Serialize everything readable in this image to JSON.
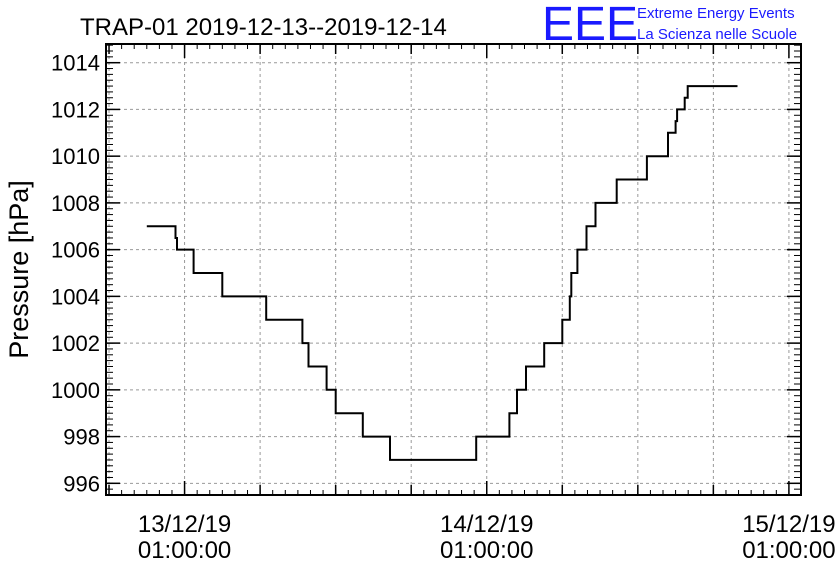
{
  "chart_data": {
    "type": "line",
    "step": true,
    "title": "TRAP-01 2019-12-13--2019-12-14",
    "ylabel": "Pressure [hPa]",
    "xlabel": "",
    "ylim": [
      995.5,
      1014.8
    ],
    "yticks": [
      996,
      998,
      1000,
      1002,
      1004,
      1006,
      1008,
      1010,
      1012,
      1014
    ],
    "ytick_labels": [
      "996",
      "998",
      "1000",
      "1002",
      "1004",
      "1006",
      "1008",
      "1010",
      "1012",
      "1014"
    ],
    "xlim": [
      -0.26,
      2.04
    ],
    "xticks": [
      0,
      1,
      2
    ],
    "xtick_labels": [
      {
        "date": "13/12/19",
        "time": "01:00:00"
      },
      {
        "date": "14/12/19",
        "time": "01:00:00"
      },
      {
        "date": "15/12/19",
        "time": "01:00:00"
      }
    ],
    "x_unit": "days since 13/12/19 01:00:00",
    "grid": true,
    "series": [
      {
        "values": [
          [
            -0.125,
            1007
          ],
          [
            -0.03,
            1007
          ],
          [
            -0.03,
            1006.5
          ],
          [
            -0.025,
            1006.5
          ],
          [
            -0.025,
            1006
          ],
          [
            0.03,
            1006
          ],
          [
            0.03,
            1005
          ],
          [
            0.125,
            1005
          ],
          [
            0.125,
            1004
          ],
          [
            0.27,
            1004
          ],
          [
            0.27,
            1003
          ],
          [
            0.39,
            1003
          ],
          [
            0.39,
            1002
          ],
          [
            0.41,
            1002
          ],
          [
            0.41,
            1001
          ],
          [
            0.47,
            1001
          ],
          [
            0.47,
            1000
          ],
          [
            0.5,
            1000
          ],
          [
            0.5,
            999
          ],
          [
            0.59,
            999
          ],
          [
            0.59,
            998
          ],
          [
            0.68,
            998
          ],
          [
            0.68,
            997
          ],
          [
            0.965,
            997
          ],
          [
            0.965,
            998
          ],
          [
            1.075,
            998
          ],
          [
            1.075,
            999
          ],
          [
            1.1,
            999
          ],
          [
            1.1,
            1000
          ],
          [
            1.13,
            1000
          ],
          [
            1.13,
            1001
          ],
          [
            1.19,
            1001
          ],
          [
            1.19,
            1002
          ],
          [
            1.25,
            1002
          ],
          [
            1.25,
            1003
          ],
          [
            1.275,
            1003
          ],
          [
            1.275,
            1004
          ],
          [
            1.28,
            1004
          ],
          [
            1.28,
            1005
          ],
          [
            1.3,
            1005
          ],
          [
            1.3,
            1006
          ],
          [
            1.33,
            1006
          ],
          [
            1.33,
            1007
          ],
          [
            1.36,
            1007
          ],
          [
            1.36,
            1008
          ],
          [
            1.43,
            1008
          ],
          [
            1.43,
            1009
          ],
          [
            1.53,
            1009
          ],
          [
            1.53,
            1010
          ],
          [
            1.6,
            1010
          ],
          [
            1.6,
            1011
          ],
          [
            1.625,
            1011
          ],
          [
            1.625,
            1011.5
          ],
          [
            1.63,
            1011.5
          ],
          [
            1.63,
            1012
          ],
          [
            1.655,
            1012
          ],
          [
            1.655,
            1012.5
          ],
          [
            1.665,
            1012.5
          ],
          [
            1.665,
            1013
          ],
          [
            1.83,
            1013
          ]
        ]
      }
    ]
  },
  "branding": {
    "logo": "EEE",
    "line1": "Extreme Energy Events",
    "line2": "La Scienza nelle Scuole"
  }
}
